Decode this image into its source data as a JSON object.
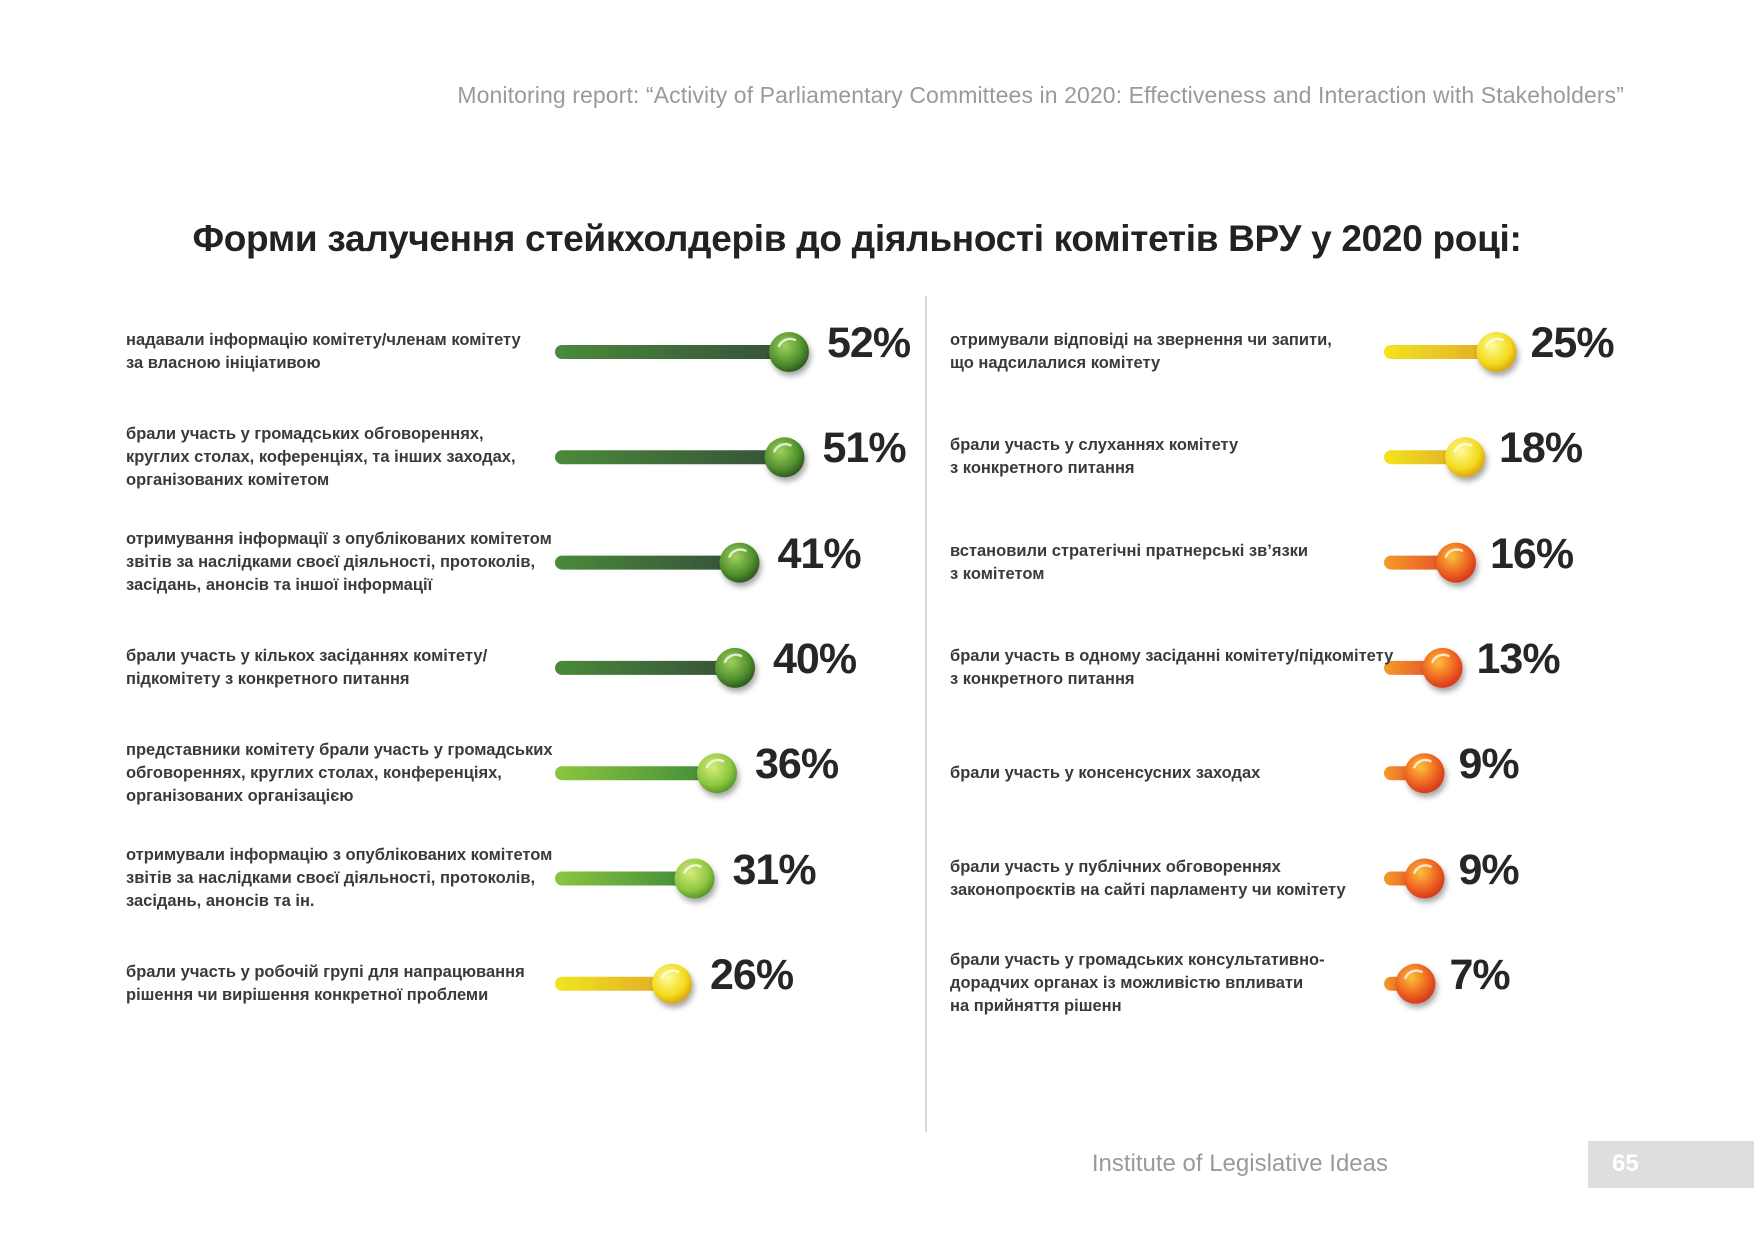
{
  "header": {
    "report_title": "Monitoring report: “Activity of Parliamentary Committees in 2020: Effectiveness and Interaction with Stakeholders”"
  },
  "footer": {
    "organization": "Institute of Legislative Ideas",
    "page_number": "65"
  },
  "colors": {
    "dark_green": "#3d6b38",
    "green": "#5ea93a",
    "light_green": "#86c83f",
    "yellow": "#ecd21e",
    "orange": "#ef6a22",
    "red_orange": "#e8401e"
  },
  "chart_data": {
    "type": "bar",
    "title": "Форми залучення стейкхолдерів до діяльності комітетів ВРУ у 2020 році:",
    "unit": "%",
    "groups": [
      {
        "name": "left",
        "items": [
          {
            "label": "надавали інформацію комітету/членам комітету\nза власною ініціативою",
            "value": 52,
            "display": "52%",
            "palette": "dark-green"
          },
          {
            "label": "брали участь у громадських обговореннях,\nкруглих столах, коференціях, та інших заходах,\nорганізованих комітетом",
            "value": 51,
            "display": "51%",
            "palette": "dark-green"
          },
          {
            "label": "отримування інформації з опублікованих комітетом\nзвітів за наслідками своєї діяльності, протоколів,\nзасідань, анонсів та іншої інформації",
            "value": 41,
            "display": "41%",
            "palette": "dark-green"
          },
          {
            "label": "брали участь у кількох засіданнях комітету/\nпідкомітету з конкретного питання",
            "value": 40,
            "display": "40%",
            "palette": "dark-green"
          },
          {
            "label": "представники комітету брали участь у громадських\nобговореннях, круглих столах, конференціях,\nорганізованих організацією",
            "value": 36,
            "display": "36%",
            "palette": "light-green"
          },
          {
            "label": "отримували інформацію з опублікованих комітетом\nзвітів за наслідками своєї діяльності, протоколів,\nзасідань, анонсів та ін.",
            "value": 31,
            "display": "31%",
            "palette": "light-green"
          },
          {
            "label": "брали участь у робочій групі для напрацювання\nрішення чи вирішення конкретної проблеми",
            "value": 26,
            "display": "26%",
            "palette": "yellow"
          }
        ]
      },
      {
        "name": "right",
        "items": [
          {
            "label": "отримували відповіді на звернення чи запити,\nщо надсилалися комітету",
            "value": 25,
            "display": "25%",
            "palette": "yellow"
          },
          {
            "label": "брали участь у слуханнях комітету\nз конкретного питання",
            "value": 18,
            "display": "18%",
            "palette": "yellow"
          },
          {
            "label": "встановили стратегічні пратнерські зв’язки\nз комітетом",
            "value": 16,
            "display": "16%",
            "palette": "orange"
          },
          {
            "label": "брали участь в одному засіданні комітету/підкомітету\nз конкретного питання",
            "value": 13,
            "display": "13%",
            "palette": "orange"
          },
          {
            "label": "брали участь у консенсусних заходах",
            "value": 9,
            "display": "9%",
            "palette": "orange"
          },
          {
            "label": "брали участь у публічних обговореннях\nзаконопроєктів на сайті парламенту чи комітету",
            "value": 9,
            "display": "9%",
            "palette": "orange"
          },
          {
            "label": "брали участь у громадських консультативно-\nдорадчих органах із можливістю впливати\nна прийняття рішенн",
            "value": 7,
            "display": "7%",
            "palette": "orange"
          }
        ]
      }
    ]
  }
}
